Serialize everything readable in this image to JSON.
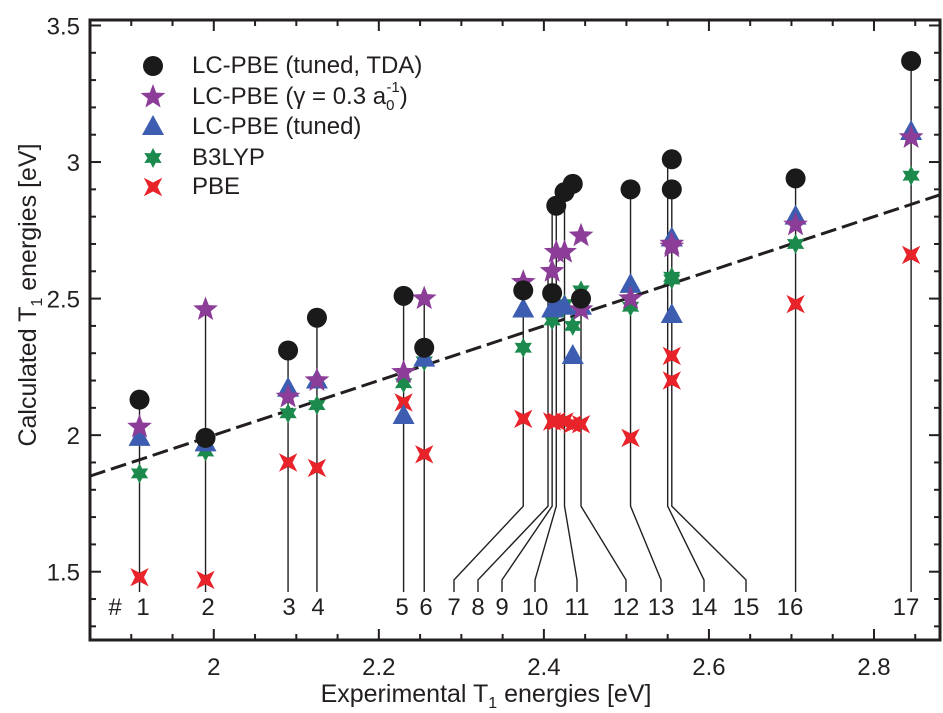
{
  "chart_data": {
    "type": "scatter",
    "xlabel": "Experimental T1 energies [eV]",
    "xlabel_main": "Experimental T",
    "xlabel_sub": "1",
    "xlabel_end": " energies [eV]",
    "ylabel": "Calculated T1 energies [eV]",
    "ylabel_main": "Calculated T",
    "ylabel_sub": "1",
    "ylabel_end": " energies [eV]",
    "xlim": [
      1.85,
      2.88
    ],
    "ylim": [
      1.25,
      3.52
    ],
    "x_ticks": [
      2,
      2.2,
      2.4,
      2.6,
      2.8
    ],
    "x_tick_labels": [
      "2",
      "2.2",
      "2.4",
      "2.6",
      "2.8"
    ],
    "y_ticks": [
      1.5,
      2,
      2.5,
      3,
      3.5
    ],
    "y_tick_labels": [
      "1.5",
      "2",
      "2.5",
      "3",
      "3.5"
    ],
    "grid": false,
    "legend_position": "top-left",
    "fit_line": {
      "style": "dashed",
      "x": [
        1.85,
        2.88
      ],
      "y": [
        1.85,
        2.88
      ]
    },
    "id_prefix": "#",
    "molecule_ids": [
      "1",
      "2",
      "3",
      "4",
      "5",
      "6",
      "7",
      "8",
      "9",
      "10",
      "11",
      "12",
      "13",
      "14",
      "15",
      "16",
      "17"
    ],
    "molecule_x": [
      1.91,
      1.99,
      2.09,
      2.125,
      2.23,
      2.255,
      2.375,
      2.405,
      2.41,
      2.415,
      2.425,
      2.445,
      2.505,
      2.55,
      2.555,
      2.705,
      2.845
    ],
    "series": [
      {
        "name": "LC-PBE (tuned, TDA)",
        "marker": "circle",
        "color": "#1a1a1a",
        "points": [
          [
            1.91,
            2.13
          ],
          [
            1.99,
            1.99
          ],
          [
            2.09,
            2.31
          ],
          [
            2.125,
            2.43
          ],
          [
            2.23,
            2.51
          ],
          [
            2.255,
            2.32
          ],
          [
            2.375,
            2.53
          ],
          [
            2.41,
            2.52
          ],
          [
            2.415,
            2.84
          ],
          [
            2.425,
            2.89
          ],
          [
            2.435,
            2.92
          ],
          [
            2.445,
            2.5
          ],
          [
            2.505,
            2.9
          ],
          [
            2.555,
            3.01
          ],
          [
            2.555,
            2.9
          ],
          [
            2.705,
            2.94
          ],
          [
            2.845,
            3.37
          ]
        ]
      },
      {
        "name": "LC-PBE (γ = 0.3 a0-1)",
        "name_main": "LC-PBE (γ = 0.3 a",
        "name_sub": "0",
        "name_sup": "-1",
        "name_end": ")",
        "marker": "star5",
        "color": "#8b3d98",
        "points": [
          [
            1.91,
            2.03
          ],
          [
            1.99,
            2.46
          ],
          [
            2.09,
            2.14
          ],
          [
            2.125,
            2.2
          ],
          [
            2.23,
            2.23
          ],
          [
            2.255,
            2.5
          ],
          [
            2.375,
            2.56
          ],
          [
            2.41,
            2.6
          ],
          [
            2.415,
            2.67
          ],
          [
            2.425,
            2.67
          ],
          [
            2.445,
            2.73
          ],
          [
            2.445,
            2.46
          ],
          [
            2.505,
            2.5
          ],
          [
            2.555,
            2.69
          ],
          [
            2.555,
            2.7
          ],
          [
            2.705,
            2.77
          ],
          [
            2.845,
            3.09
          ]
        ]
      },
      {
        "name": "LC-PBE (tuned)",
        "marker": "triangle",
        "color": "#3d5db0",
        "points": [
          [
            1.91,
            1.99
          ],
          [
            1.99,
            1.97
          ],
          [
            2.09,
            2.17
          ],
          [
            2.125,
            2.2
          ],
          [
            2.23,
            2.07
          ],
          [
            2.255,
            2.28
          ],
          [
            2.375,
            2.46
          ],
          [
            2.41,
            2.46
          ],
          [
            2.415,
            2.48
          ],
          [
            2.425,
            2.47
          ],
          [
            2.435,
            2.29
          ],
          [
            2.445,
            2.47
          ],
          [
            2.505,
            2.55
          ],
          [
            2.555,
            2.44
          ],
          [
            2.555,
            2.72
          ],
          [
            2.705,
            2.8
          ],
          [
            2.845,
            3.11
          ]
        ]
      },
      {
        "name": "B3LYP",
        "marker": "star6",
        "color": "#1b8a4c",
        "points": [
          [
            1.91,
            1.86
          ],
          [
            1.99,
            1.94
          ],
          [
            2.09,
            2.08
          ],
          [
            2.125,
            2.11
          ],
          [
            2.23,
            2.19
          ],
          [
            2.255,
            2.27
          ],
          [
            2.375,
            2.32
          ],
          [
            2.41,
            2.42
          ],
          [
            2.415,
            2.45
          ],
          [
            2.425,
            2.48
          ],
          [
            2.435,
            2.4
          ],
          [
            2.445,
            2.53
          ],
          [
            2.505,
            2.47
          ],
          [
            2.555,
            2.57
          ],
          [
            2.555,
            2.58
          ],
          [
            2.705,
            2.7
          ],
          [
            2.845,
            2.95
          ]
        ]
      },
      {
        "name": "PBE",
        "marker": "star4",
        "color": "#e8242a",
        "points": [
          [
            1.91,
            1.48
          ],
          [
            1.99,
            1.47
          ],
          [
            2.09,
            1.9
          ],
          [
            2.125,
            1.88
          ],
          [
            2.23,
            2.12
          ],
          [
            2.255,
            1.93
          ],
          [
            2.375,
            2.06
          ],
          [
            2.41,
            2.05
          ],
          [
            2.415,
            2.05
          ],
          [
            2.425,
            2.05
          ],
          [
            2.435,
            2.04
          ],
          [
            2.445,
            2.04
          ],
          [
            2.505,
            1.99
          ],
          [
            2.555,
            2.29
          ],
          [
            2.555,
            2.2
          ],
          [
            2.705,
            2.48
          ],
          [
            2.845,
            2.66
          ]
        ]
      }
    ]
  }
}
